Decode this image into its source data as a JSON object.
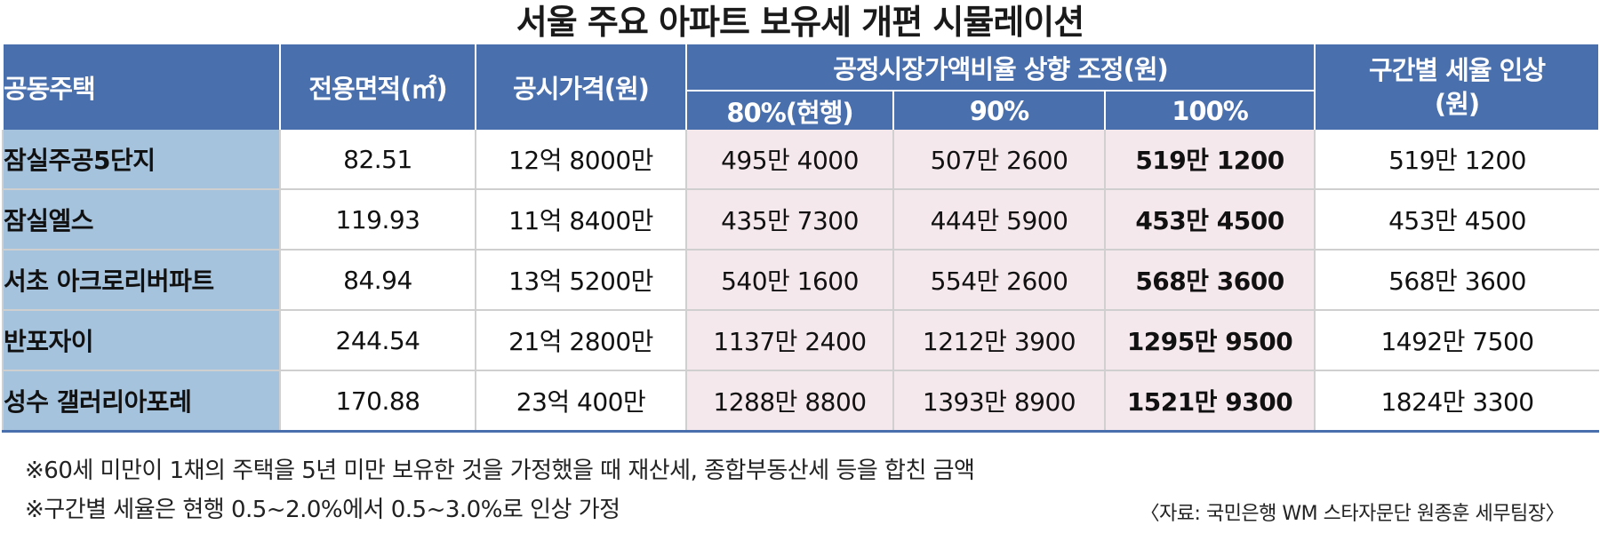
{
  "title": "서울 주요 아파트 보유세 개편 시뮬레이션",
  "headers": {
    "name": "공동주택",
    "area": "전용면적(㎡)",
    "price": "공시가격(원)",
    "adjust": "공정시장가액비율 상향 조정(원)",
    "sub": [
      "80%(현행)",
      "90%",
      "100%"
    ],
    "rate_line1": "구간별 세율 인상",
    "rate_line2": "(원)"
  },
  "rows": [
    {
      "name": "잠실주공5단지",
      "area": "82.51",
      "price": "12억 8000만",
      "p80": "495만 4000",
      "p90": "507만 2600",
      "p100": "519만 1200",
      "rate": "519만 1200"
    },
    {
      "name": "잠실엘스",
      "area": "119.93",
      "price": "11억 8400만",
      "p80": "435만 7300",
      "p90": "444만 5900",
      "p100": "453만 4500",
      "rate": "453만 4500"
    },
    {
      "name": "서초 아크로리버파트",
      "area": "84.94",
      "price": "13억 5200만",
      "p80": "540만 1600",
      "p90": "554만 2600",
      "p100": "568만 3600",
      "rate": "568만 3600"
    },
    {
      "name": "반포자이",
      "area": "244.54",
      "price": "21억 2800만",
      "p80": "1137만 2400",
      "p90": "1212만 3900",
      "p100": "1295만 9500",
      "rate": "1492만 7500"
    },
    {
      "name": "성수 갤러리아포레",
      "area": "170.88",
      "price": "23억 400만",
      "p80": "1288만 8800",
      "p90": "1393만 8900",
      "p100": "1521만 9300",
      "rate": "1824만 3300"
    }
  ],
  "notes": [
    "※60세 미만이 1채의 주택을 5년 미만 보유한 것을 가정했을 때 재산세, 종합부동산세 등을 합친 금액",
    "※구간별 세율은 현행 0.5~2.0%에서 0.5~3.0%로 인상 가정"
  ],
  "source": "〈자료: 국민은행 WM 스타자문단 원종훈 세무팀장〉",
  "colors": {
    "header_bg": "#4a6fad",
    "subheader_bg": "#0c4488",
    "name_col_bg": "#a6c3dd",
    "highlight_bg": "#f5e8ec"
  }
}
